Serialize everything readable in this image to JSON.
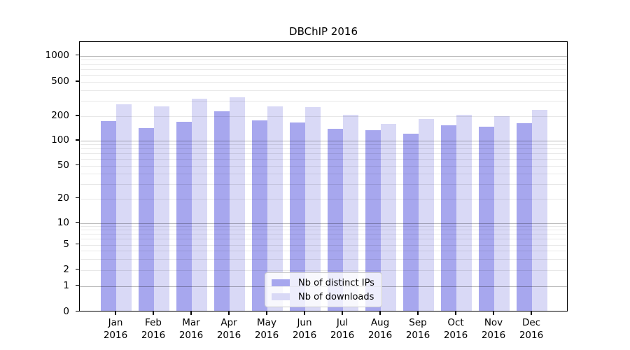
{
  "chart_data": {
    "type": "bar",
    "title": "DBChIP 2016",
    "categories": [
      "Jan 2016",
      "Feb 2016",
      "Mar 2016",
      "Apr 2016",
      "May 2016",
      "Jun 2016",
      "Jul 2016",
      "Aug 2016",
      "Sep 2016",
      "Oct 2016",
      "Nov 2016",
      "Dec 2016"
    ],
    "series": [
      {
        "name": "Nb of distinct IPs",
        "color": "#a7a7ee",
        "values": [
          170,
          140,
          167,
          220,
          172,
          161,
          135,
          131,
          118,
          151,
          144,
          159
        ]
      },
      {
        "name": "Nb of downloads",
        "color": "#d9d9f6",
        "values": [
          268,
          255,
          310,
          320,
          252,
          246,
          202,
          156,
          179,
          202,
          195,
          230
        ]
      }
    ],
    "y_axis": {
      "scale": "log-like with linear segment to 0",
      "tick_values": [
        0,
        1,
        2,
        5,
        10,
        20,
        50,
        100,
        200,
        500,
        1000
      ],
      "tick_labels": [
        "0",
        "1",
        "2",
        "5",
        "10",
        "20",
        "50",
        "100",
        "200",
        "500",
        "1000"
      ],
      "major_grid_values": [
        1,
        10,
        100,
        1000
      ],
      "minor_grid_values": [
        2,
        3,
        4,
        5,
        6,
        7,
        8,
        9,
        20,
        30,
        40,
        50,
        60,
        70,
        80,
        90,
        200,
        300,
        400,
        500,
        600,
        700,
        800,
        900
      ],
      "ylim": [
        0,
        1450
      ]
    },
    "x_axis": {
      "label": "",
      "tick_labels_two_line": true
    },
    "grid": "horizontal, drawn over bars",
    "legend": {
      "position": "inside-bottom-center",
      "items": [
        "Nb of distinct IPs",
        "Nb of downloads"
      ]
    }
  }
}
